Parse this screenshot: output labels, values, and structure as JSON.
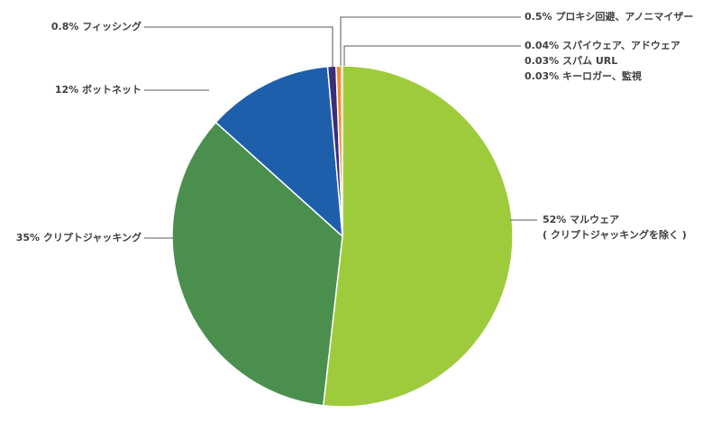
{
  "chart_data": {
    "type": "pie",
    "title": "",
    "slices": [
      {
        "label": "マルウェア",
        "sublabel": "( クリプトジャッキングを除く )",
        "value_label": "52%",
        "value": 52.0,
        "color": "#9ecb3c"
      },
      {
        "label": "クリプトジャッキング",
        "value_label": "35%",
        "value": 35.0,
        "color": "#4a8f4e"
      },
      {
        "label": "ボットネット",
        "value_label": "12%",
        "value": 12.0,
        "color": "#1e5fac"
      },
      {
        "label": "フィッシング",
        "value_label": "0.8%",
        "value": 0.8,
        "color": "#3b2d7a"
      },
      {
        "label": "プロキシ回避、アノニマイザー",
        "value_label": "0.5%",
        "value": 0.5,
        "color": "#f08c2e"
      },
      {
        "label": "スパイウェア、アドウェア",
        "value_label": "0.04%",
        "value": 0.04,
        "color": "#d9302c"
      },
      {
        "label": "スパム URL",
        "value_label": "0.03%",
        "value": 0.03,
        "color": "#f3c431"
      },
      {
        "label": "キーロガー、監視",
        "value_label": "0.03%",
        "value": 0.03,
        "color": "#7a4a2a"
      }
    ]
  }
}
